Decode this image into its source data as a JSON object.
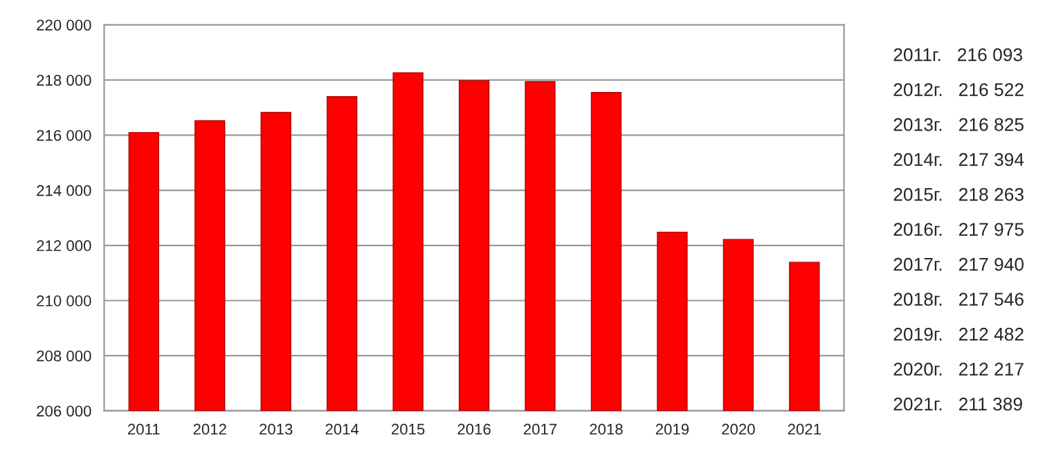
{
  "chart_data": {
    "type": "bar",
    "categories": [
      "2011",
      "2012",
      "2013",
      "2014",
      "2015",
      "2016",
      "2017",
      "2018",
      "2019",
      "2020",
      "2021"
    ],
    "values": [
      216093,
      216522,
      216825,
      217394,
      218263,
      217975,
      217940,
      217546,
      212482,
      212217,
      211389
    ],
    "annotations": [
      "2011г.   216 093",
      "2012г.   216 522",
      "2013г.   216 825",
      "2014г.   217 394",
      "2015г.   218 263",
      "2016г.   217 975",
      "2017г.   217 940",
      "2018г.   217 546",
      "2019г.   212 482",
      "2020г.   212 217",
      "2021г.   211 389"
    ],
    "color": "#ff0000",
    "ylim": [
      206000,
      220000
    ],
    "yticks": [
      {
        "value": 206000,
        "label": "206 000"
      },
      {
        "value": 208000,
        "label": "208 000"
      },
      {
        "value": 210000,
        "label": "210 000"
      },
      {
        "value": 212000,
        "label": "212 000"
      },
      {
        "value": 214000,
        "label": "214 000"
      },
      {
        "value": 216000,
        "label": "216 000"
      },
      {
        "value": 218000,
        "label": "218 000"
      },
      {
        "value": 220000,
        "label": "220 000"
      }
    ],
    "grid": "y",
    "legend": false
  }
}
